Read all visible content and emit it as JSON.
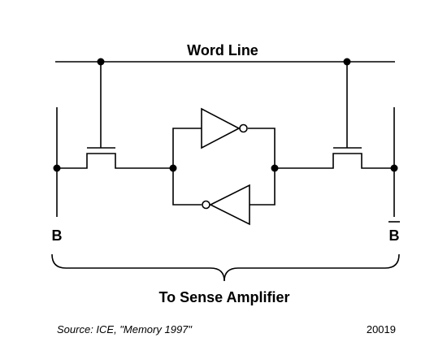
{
  "labels": {
    "word_line": "Word Line",
    "bit_line": "B",
    "bit_line_bar": "B",
    "sense_amplifier": "To Sense Amplifier"
  },
  "footer": {
    "source": "Source: ICE, \"Memory 1997\"",
    "figure_number": "20019"
  }
}
